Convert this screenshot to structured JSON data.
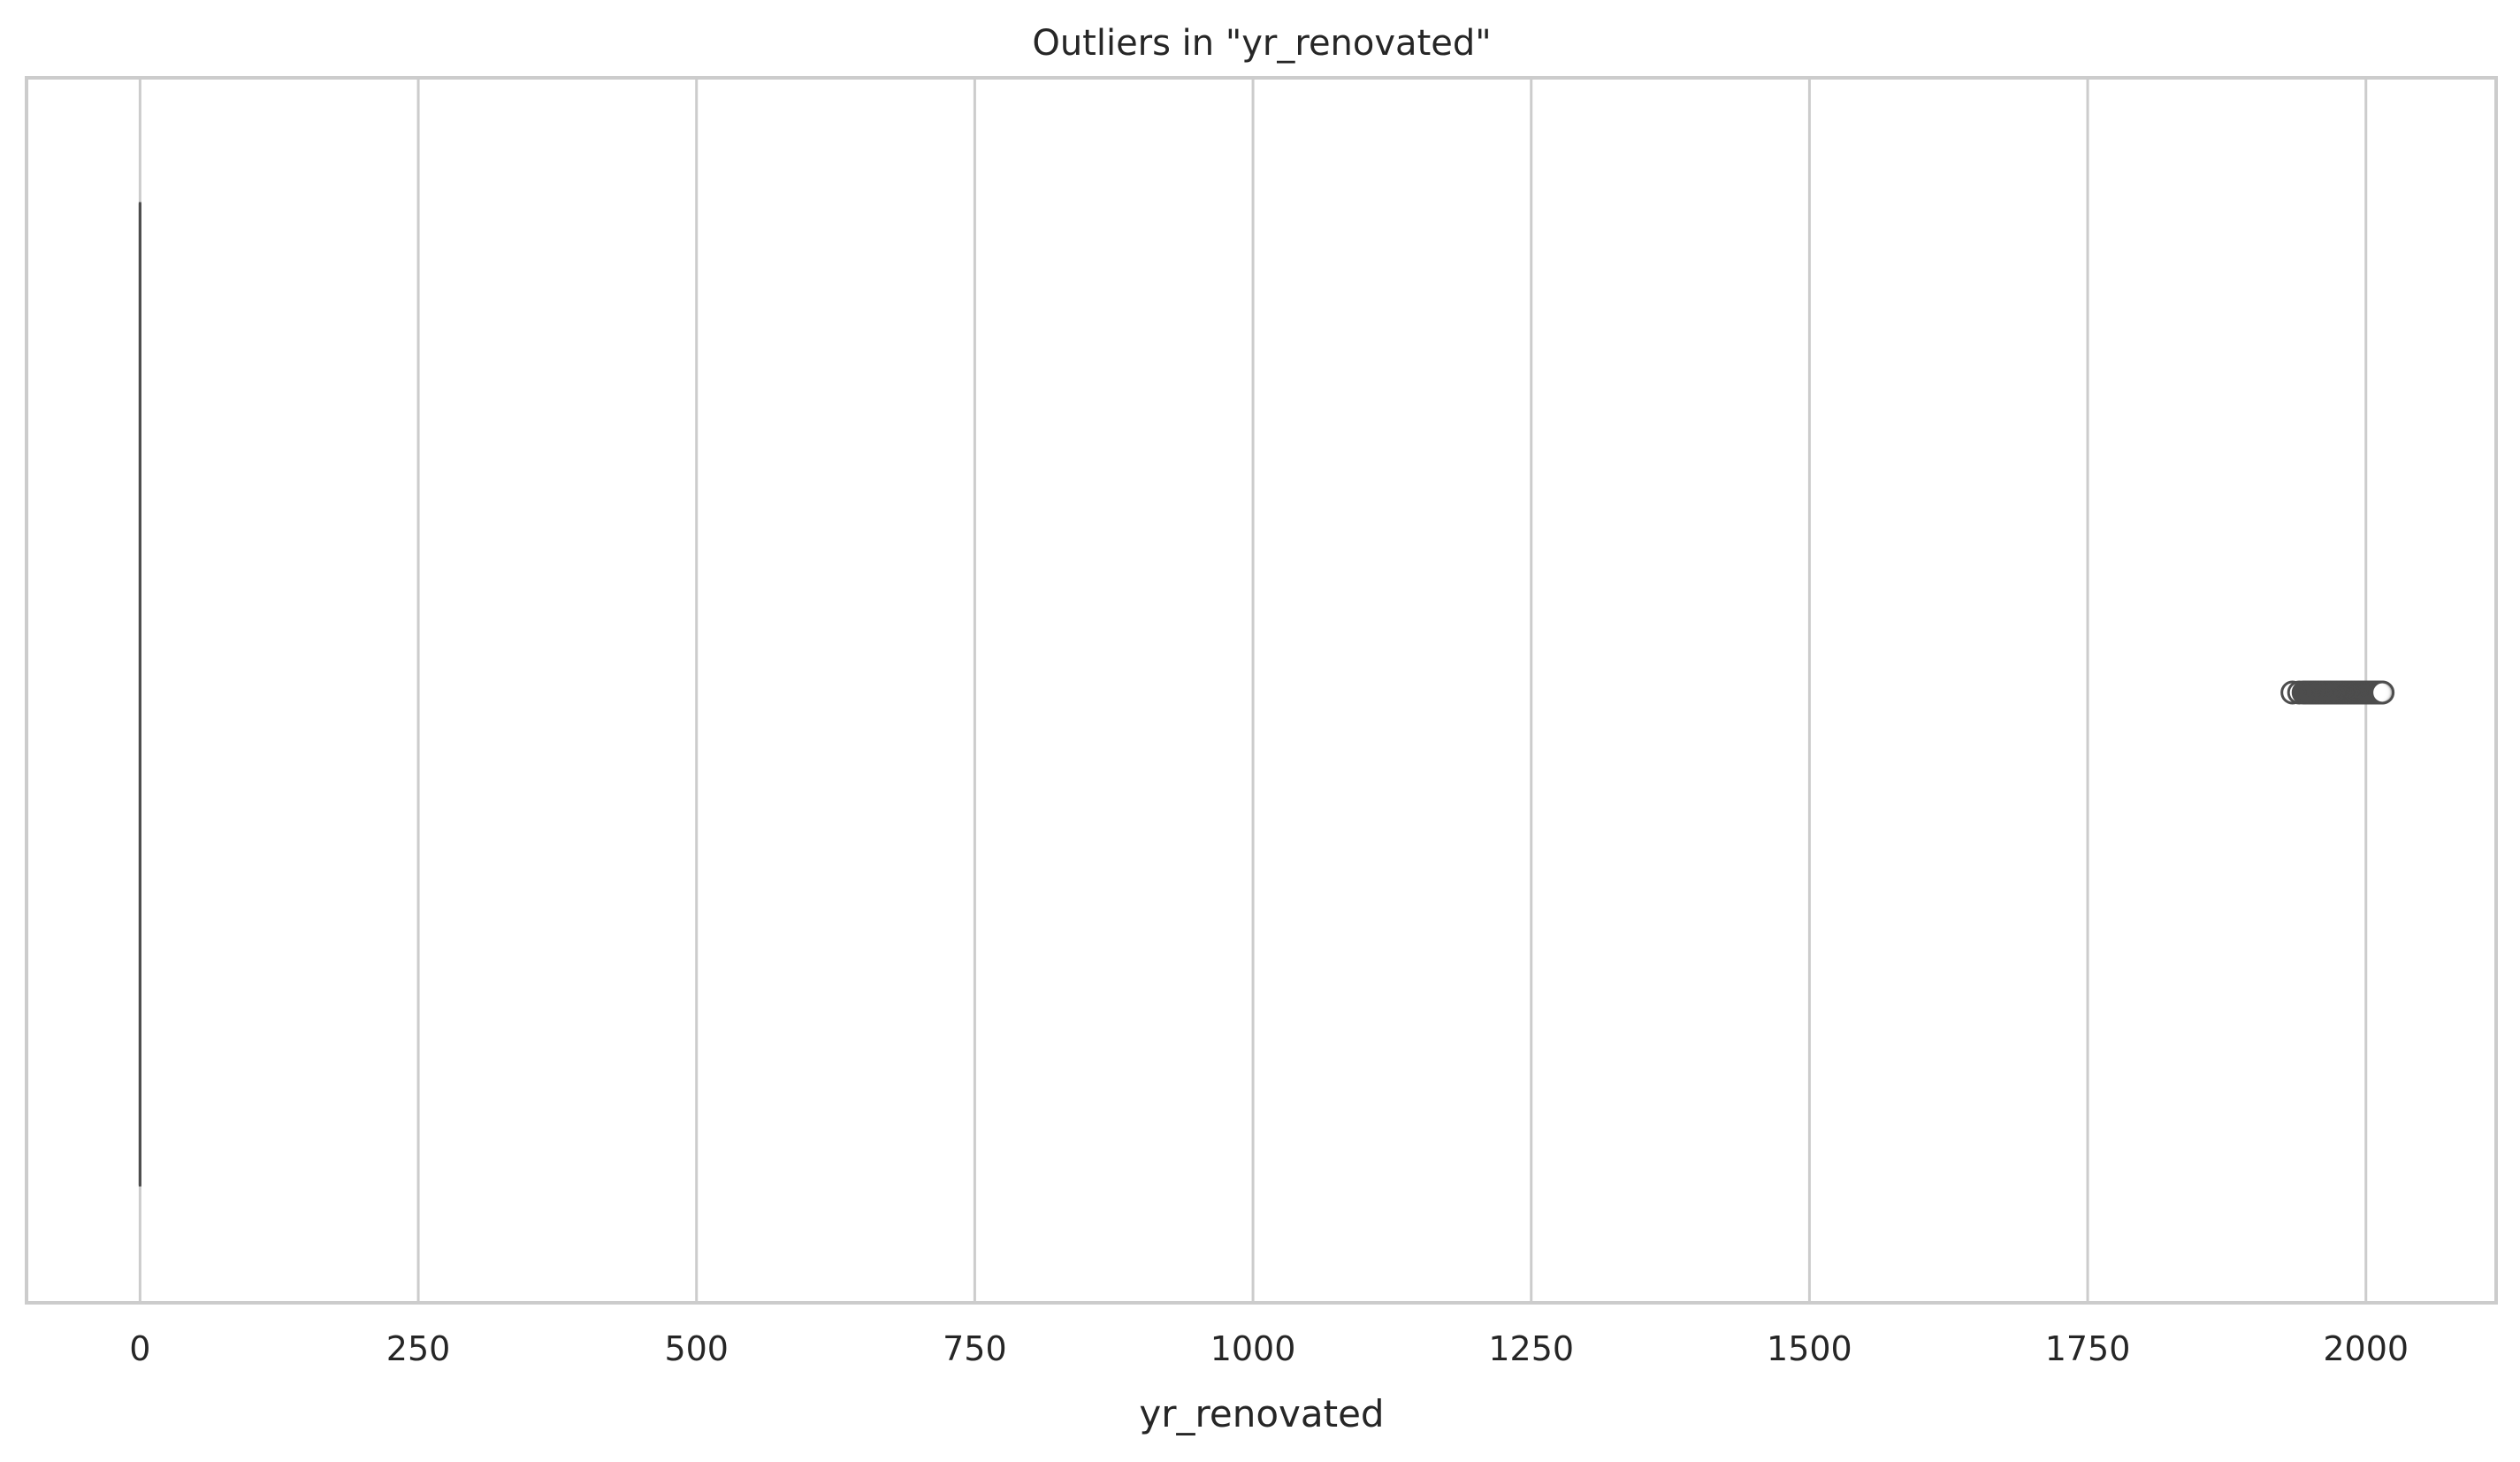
{
  "chart_data": {
    "type": "box",
    "title": "Outliers in \"yr_renovated\"",
    "xlabel": "yr_renovated",
    "ylabel": "",
    "orientation": "horizontal",
    "xlim": [
      -102,
      2117
    ],
    "x_ticks": [
      0,
      250,
      500,
      750,
      1000,
      1250,
      1500,
      1750,
      2000
    ],
    "x_tick_labels": [
      "0",
      "250",
      "500",
      "750",
      "1000",
      "1250",
      "1500",
      "1750",
      "2000"
    ],
    "grid": true,
    "box": {
      "min": 0,
      "q1": 0,
      "median": 0,
      "q3": 0,
      "max": 0
    },
    "outliers": [
      1934,
      1940,
      1944,
      1945,
      1946,
      1948,
      1950,
      1951,
      1953,
      1954,
      1955,
      1956,
      1957,
      1958,
      1959,
      1960,
      1962,
      1963,
      1964,
      1965,
      1967,
      1968,
      1969,
      1970,
      1971,
      1972,
      1973,
      1974,
      1975,
      1976,
      1977,
      1978,
      1979,
      1980,
      1981,
      1982,
      1983,
      1984,
      1985,
      1986,
      1987,
      1988,
      1989,
      1990,
      1991,
      1992,
      1993,
      1994,
      1995,
      1996,
      1997,
      1998,
      1999,
      2000,
      2001,
      2002,
      2003,
      2004,
      2005,
      2006,
      2007,
      2008,
      2009,
      2010,
      2011,
      2012,
      2013,
      2014,
      2015
    ],
    "colors": {
      "box_line": "#4d4d4d",
      "grid": "#cccccc",
      "frame": "#cccccc",
      "outlier_edge": "#4d4d4d",
      "text": "#262626"
    }
  }
}
